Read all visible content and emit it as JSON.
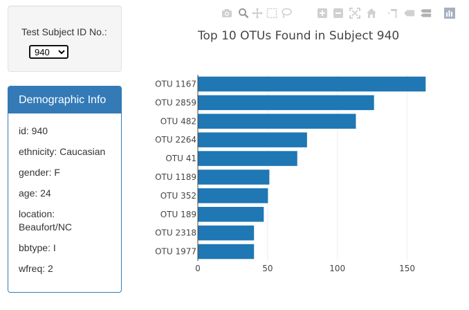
{
  "selector": {
    "label": "Test Subject ID No.:",
    "selected": "940"
  },
  "demographics": {
    "header": "Demographic Info",
    "rows": [
      "id: 940",
      "ethnicity: Caucasian",
      "gender: F",
      "age: 24",
      "location:",
      "Beaufort/NC",
      "bbtype: I",
      "wfreq: 2"
    ]
  },
  "toolbar": {
    "icons": [
      "camera-icon",
      "zoom-icon",
      "pan-icon",
      "box-select-icon",
      "lasso-select-icon",
      "zoom-in-icon",
      "zoom-out-icon",
      "autoscale-icon",
      "reset-axes-icon",
      "spike-lines-icon",
      "hover-closest-icon",
      "hover-compare-icon",
      "plotly-logo-icon"
    ]
  },
  "chart_data": {
    "type": "bar",
    "orientation": "horizontal",
    "title": "Top 10 OTUs Found in Subject 940",
    "categories": [
      "OTU 1167",
      "OTU 2859",
      "OTU 482",
      "OTU 2264",
      "OTU 41",
      "OTU 1189",
      "OTU 352",
      "OTU 189",
      "OTU 2318",
      "OTU 1977"
    ],
    "values": [
      163,
      126,
      113,
      78,
      71,
      51,
      50,
      47,
      40,
      40
    ],
    "xticks": [
      0,
      50,
      100,
      150
    ],
    "xlim": [
      0,
      172
    ],
    "grid": true,
    "bar_color": "#1f77b4"
  }
}
